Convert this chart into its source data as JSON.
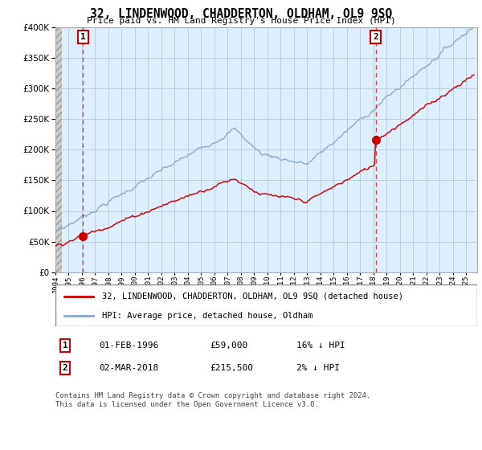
{
  "title": "32, LINDENWOOD, CHADDERTON, OLDHAM, OL9 9SQ",
  "subtitle": "Price paid vs. HM Land Registry's House Price Index (HPI)",
  "ylim": [
    0,
    400000
  ],
  "xlim_start": 1994.0,
  "xlim_end": 2025.83,
  "sale1_x": 1996.083,
  "sale1_y": 59000,
  "sale1_label": "1",
  "sale2_x": 2018.167,
  "sale2_y": 215500,
  "sale2_label": "2",
  "line_color_red": "#cc0000",
  "line_color_blue": "#88aacc",
  "marker_color": "#cc0000",
  "dashed_color": "#cc0000",
  "background_plot": "#ddeeff",
  "grid_color": "#bbccdd",
  "legend_entry1": "32, LINDENWOOD, CHADDERTON, OLDHAM, OL9 9SQ (detached house)",
  "legend_entry2": "HPI: Average price, detached house, Oldham",
  "annotation1_date": "01-FEB-1996",
  "annotation1_price": "£59,000",
  "annotation1_hpi": "16% ↓ HPI",
  "annotation2_date": "02-MAR-2018",
  "annotation2_price": "£215,500",
  "annotation2_hpi": "2% ↓ HPI",
  "footnote": "Contains HM Land Registry data © Crown copyright and database right 2024.\nThis data is licensed under the Open Government Licence v3.0."
}
